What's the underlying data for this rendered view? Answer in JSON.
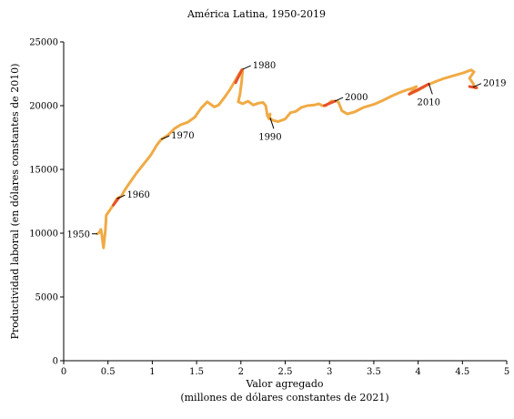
{
  "chart_data": {
    "type": "line",
    "title": "América Latina, 1950-2019",
    "xlabel": "Valor agregado",
    "xlabel_sub": "(millones de dólares constantes de 2021)",
    "ylabel": "Productividad laboral (en dólares constantes de 2010)",
    "xlim": [
      0,
      5
    ],
    "ylim": [
      0,
      25000
    ],
    "xticks": [
      0,
      0.5,
      1,
      1.5,
      2,
      2.5,
      3,
      3.5,
      4,
      4.5,
      5
    ],
    "xtick_labels": [
      "0",
      "0.5",
      "1",
      "1.5",
      "2",
      "2.5",
      "3",
      "3.5",
      "4",
      "4.5",
      "5"
    ],
    "yticks": [
      0,
      5000,
      10000,
      15000,
      20000,
      25000
    ],
    "ytick_labels": [
      "0",
      "5000",
      "10000",
      "15000",
      "20000",
      "25000"
    ],
    "grid": false,
    "colors": {
      "line": "#f0aa45",
      "highlight": "#e8502a",
      "axis": "#000000"
    },
    "series": [
      {
        "points": [
          [
            0.38,
            9950
          ],
          [
            0.4,
            10050
          ],
          [
            0.42,
            10300
          ],
          [
            0.43,
            9900
          ],
          [
            0.44,
            9300
          ],
          [
            0.45,
            8850
          ],
          [
            0.47,
            10200
          ],
          [
            0.48,
            11400
          ],
          [
            0.52,
            11800
          ],
          [
            0.56,
            12200
          ],
          [
            0.6,
            12700
          ],
          [
            0.65,
            12900
          ],
          [
            0.7,
            13500
          ],
          [
            0.76,
            14100
          ],
          [
            0.82,
            14700
          ],
          [
            0.9,
            15400
          ],
          [
            0.98,
            16100
          ],
          [
            1.05,
            16900
          ],
          [
            1.1,
            17350
          ],
          [
            1.18,
            17700
          ],
          [
            1.25,
            18200
          ],
          [
            1.32,
            18500
          ],
          [
            1.4,
            18700
          ],
          [
            1.48,
            19100
          ],
          [
            1.55,
            19800
          ],
          [
            1.62,
            20300
          ],
          [
            1.66,
            20100
          ],
          [
            1.7,
            19900
          ],
          [
            1.75,
            20050
          ],
          [
            1.82,
            20700
          ],
          [
            1.88,
            21300
          ],
          [
            1.93,
            21900
          ],
          [
            1.98,
            22500
          ],
          [
            2.02,
            22850
          ],
          [
            2.01,
            22000
          ],
          [
            1.99,
            20900
          ],
          [
            1.97,
            20300
          ],
          [
            2.02,
            20150
          ],
          [
            2.08,
            20350
          ],
          [
            2.14,
            20050
          ],
          [
            2.2,
            20200
          ],
          [
            2.25,
            20250
          ],
          [
            2.28,
            20000
          ],
          [
            2.3,
            19200
          ],
          [
            2.32,
            18950
          ],
          [
            2.33,
            19350
          ],
          [
            2.32,
            19050
          ],
          [
            2.36,
            18850
          ],
          [
            2.42,
            18750
          ],
          [
            2.5,
            18950
          ],
          [
            2.56,
            19450
          ],
          [
            2.62,
            19550
          ],
          [
            2.68,
            19850
          ],
          [
            2.75,
            20000
          ],
          [
            2.83,
            20050
          ],
          [
            2.88,
            20150
          ],
          [
            2.92,
            20000
          ],
          [
            2.96,
            20000
          ],
          [
            3.02,
            20350
          ],
          [
            3.08,
            20350
          ],
          [
            3.1,
            20300
          ],
          [
            3.14,
            19600
          ],
          [
            3.2,
            19350
          ],
          [
            3.28,
            19500
          ],
          [
            3.38,
            19850
          ],
          [
            3.5,
            20100
          ],
          [
            3.6,
            20400
          ],
          [
            3.7,
            20750
          ],
          [
            3.8,
            21050
          ],
          [
            3.88,
            21250
          ],
          [
            3.95,
            21400
          ],
          [
            3.98,
            21500
          ],
          [
            3.9,
            20900
          ],
          [
            4.0,
            21200
          ],
          [
            4.1,
            21600
          ],
          [
            4.2,
            21900
          ],
          [
            4.3,
            22150
          ],
          [
            4.4,
            22350
          ],
          [
            4.5,
            22550
          ],
          [
            4.56,
            22700
          ],
          [
            4.6,
            22800
          ],
          [
            4.63,
            22650
          ],
          [
            4.58,
            22150
          ],
          [
            4.62,
            21750
          ],
          [
            4.64,
            21400
          ],
          [
            4.66,
            21400
          ]
        ]
      }
    ],
    "highlights": [
      {
        "from": [
          0.56,
          12200
        ],
        "to": [
          0.62,
          12750
        ]
      },
      {
        "from": [
          1.94,
          21800
        ],
        "to": [
          2.01,
          22800
        ]
      },
      {
        "from": [
          2.94,
          20000
        ],
        "to": [
          3.06,
          20350
        ]
      },
      {
        "from": [
          3.9,
          20900
        ],
        "to": [
          4.12,
          21700
        ]
      },
      {
        "from": [
          4.58,
          21500
        ],
        "to": [
          4.66,
          21400
        ]
      }
    ],
    "annotations": [
      {
        "label": "1950",
        "x": 0.38,
        "y": 9950,
        "side": "left"
      },
      {
        "label": "1960",
        "x": 0.6,
        "y": 12700,
        "side": "right"
      },
      {
        "label": "1970",
        "x": 1.1,
        "y": 17350,
        "side": "right"
      },
      {
        "label": "1980",
        "x": 2.02,
        "y": 22850,
        "side": "right"
      },
      {
        "label": "1990",
        "x": 2.33,
        "y": 19050,
        "side": "below"
      },
      {
        "label": "2000",
        "x": 3.06,
        "y": 20350,
        "side": "right"
      },
      {
        "label": "2010",
        "x": 4.12,
        "y": 21750,
        "side": "below"
      },
      {
        "label": "2019",
        "x": 4.62,
        "y": 21450,
        "side": "right"
      }
    ]
  }
}
